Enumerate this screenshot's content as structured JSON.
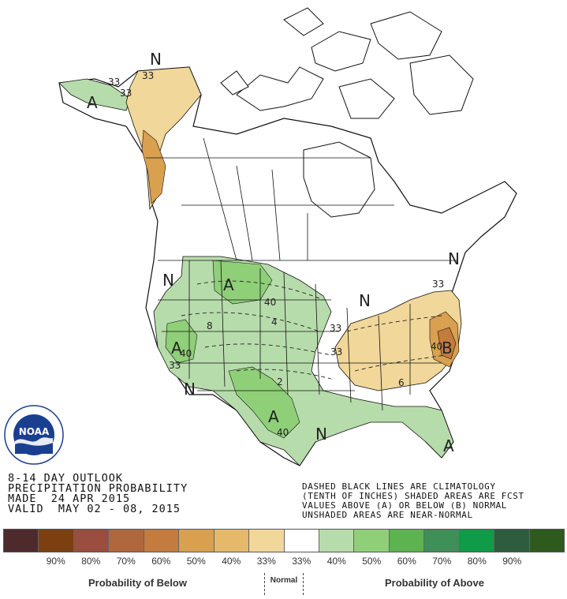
{
  "title_block": {
    "line1": "8-14 DAY OUTLOOK",
    "line2": "PRECIPITATION PROBABILITY",
    "line3": "MADE  24 APR 2015",
    "line4": "VALID  MAY 02 - 08, 2015"
  },
  "notes": {
    "line1": "DASHED BLACK LINES ARE CLIMATOLOGY",
    "line2": "(TENTH OF INCHES) SHADED AREAS ARE FCST",
    "line3": "VALUES ABOVE (A) OR BELOW (B) NORMAL",
    "line4": "UNSHADED AREAS ARE NEAR-NORMAL"
  },
  "logo": {
    "name": "NOAA",
    "ring_text": "NATIONAL OCEANIC AND ATMOSPHERIC ADMINISTRATION · U.S. DEPARTMENT OF COMMERCE"
  },
  "colors": {
    "below_33": "#f1d79a",
    "below_40": "#e5b96a",
    "below_50": "#d9a050",
    "below_60": "#c47b3e",
    "below_70": "#b0673d",
    "below_80": "#9b4d3f",
    "below_90": "#7b3f10",
    "below_max": "#4e2a2c",
    "above_33": "#b7dcab",
    "above_40": "#8fcf78",
    "above_50": "#5db34f",
    "above_60": "#3f8f58",
    "above_70": "#0f9b47",
    "above_80": "#2e5c3f",
    "above_90": "#2f5a1e",
    "normal": "#ffffff"
  },
  "regions": {
    "alaska_west": "A",
    "alaska_north": "N",
    "northern_plains": "A",
    "southwest": "A",
    "southwest_N": "N",
    "texas": "A",
    "gulf_N": "N",
    "great_lakes_N": "N",
    "northeast_N": "N",
    "florida": "A",
    "mid_atlantic": "B"
  },
  "contour_labels": {
    "ak_1": "33",
    "ak_2": "33",
    "ak_3": "33",
    "np_40": "40",
    "sw_40": "40",
    "sw_33": "33",
    "tx_40": "40",
    "ohio_33": "33",
    "midw_33": "33",
    "ne_33": "33",
    "ma_40": "40",
    "clim_4": "4",
    "clim_2": "2",
    "clim_6": "6",
    "clim_8": "8"
  },
  "legend": {
    "swatches": [
      {
        "color": "#4e2a2c"
      },
      {
        "color": "#7b3f10"
      },
      {
        "color": "#9b4d3f"
      },
      {
        "color": "#b0673d"
      },
      {
        "color": "#c47b3e"
      },
      {
        "color": "#d9a050"
      },
      {
        "color": "#e5b96a"
      },
      {
        "color": "#f1d79a"
      },
      {
        "color": "#ffffff"
      },
      {
        "color": "#b7dcab"
      },
      {
        "color": "#8fcf78"
      },
      {
        "color": "#5db34f"
      },
      {
        "color": "#3f8f58"
      },
      {
        "color": "#0f9b47"
      },
      {
        "color": "#2e5c3f"
      },
      {
        "color": "#2f5a1e"
      }
    ],
    "percent_labels": [
      "",
      "90%",
      "80%",
      "70%",
      "60%",
      "50%",
      "40%",
      "33%",
      "33%",
      "40%",
      "50%",
      "60%",
      "70%",
      "80%",
      "90%",
      ""
    ],
    "below_caption": "Probability of Below",
    "normal_caption": "Normal",
    "above_caption": "Probability of Above"
  }
}
